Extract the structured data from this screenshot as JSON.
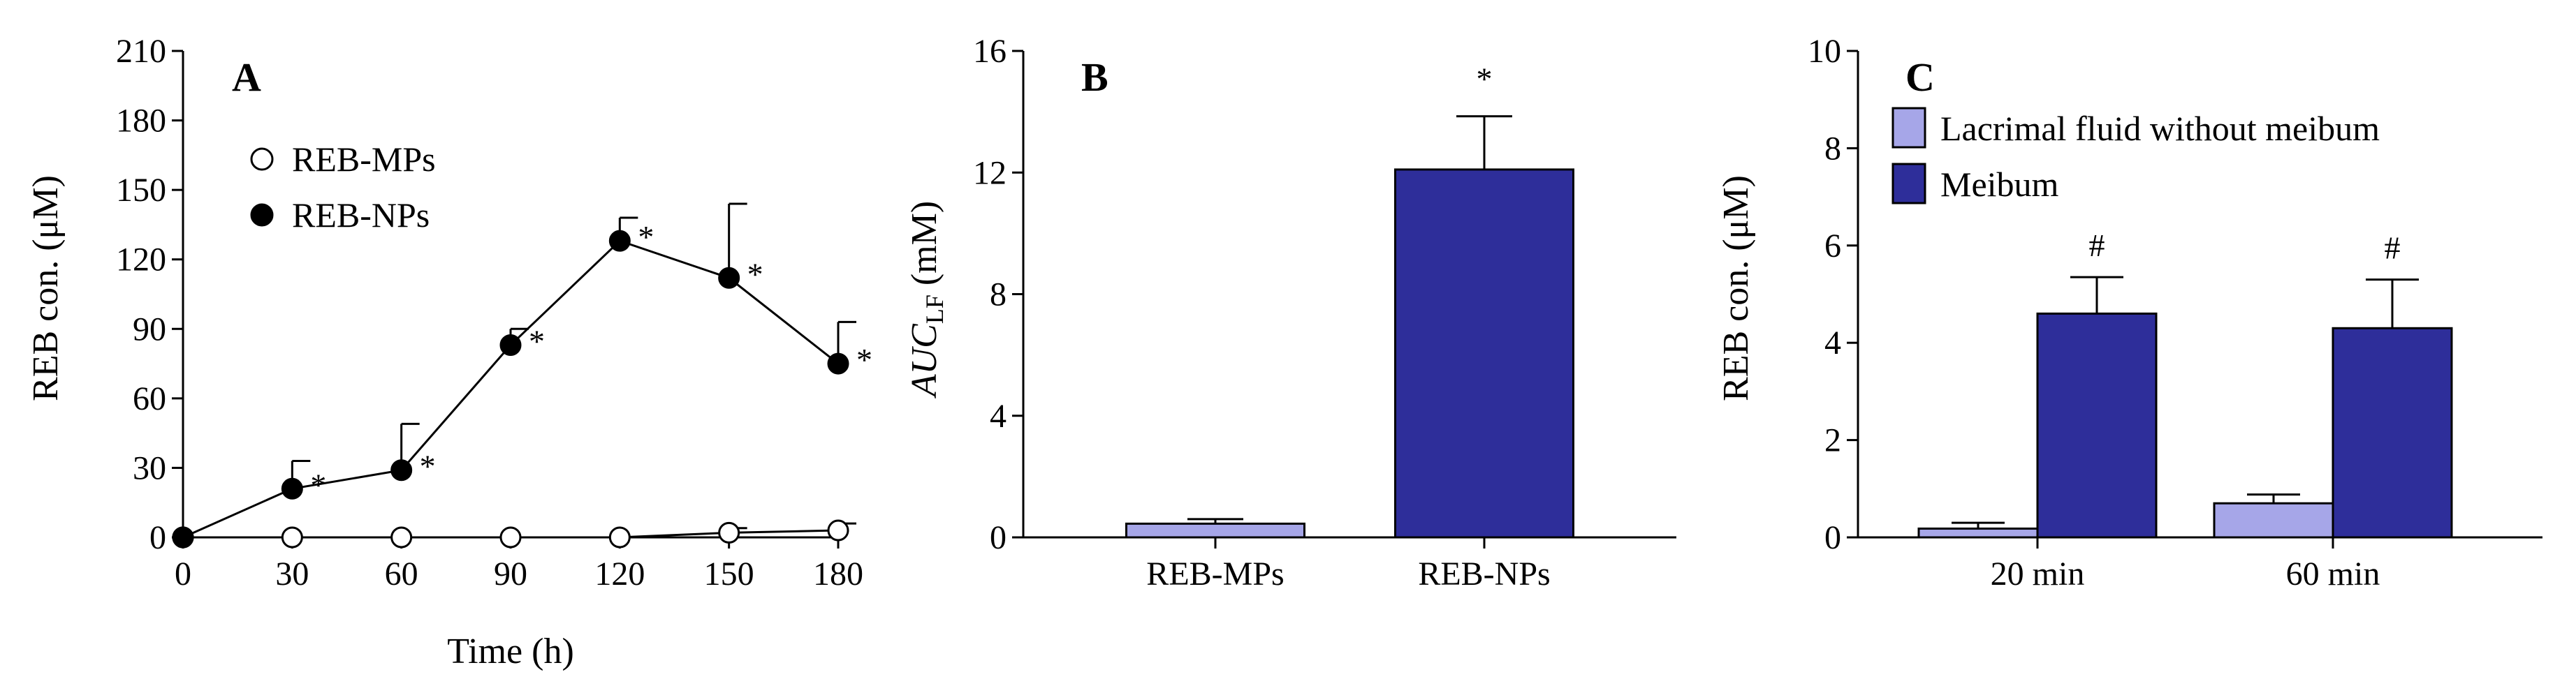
{
  "colors": {
    "light_bar": "#a6a6e8",
    "dark_bar": "#2e2e9a",
    "axis": "#000000",
    "open_marker_fill": "#ffffff",
    "filled_marker": "#000000"
  },
  "chart_data": [
    {
      "type": "line",
      "panel_letter": "A",
      "xlabel": "Time (h)",
      "ylabel": "REB con. (μM)",
      "xlim": [
        0,
        180
      ],
      "ylim": [
        0,
        210
      ],
      "xticks": [
        "0",
        "30",
        "60",
        "90",
        "120",
        "150",
        "180"
      ],
      "yticks": [
        "0",
        "30",
        "60",
        "90",
        "120",
        "150",
        "180",
        "210"
      ],
      "legend_position": "upper-left",
      "series": [
        {
          "name": "REB-MPs",
          "marker": "open-circle",
          "x": [
            0,
            30,
            60,
            90,
            120,
            150,
            180
          ],
          "y": [
            0,
            0,
            0,
            0,
            0,
            2,
            3
          ],
          "error": [
            0,
            0,
            0,
            0,
            0,
            2,
            3
          ],
          "significance": [
            "",
            "",
            "",
            "",
            "",
            "",
            ""
          ]
        },
        {
          "name": "REB-NPs",
          "marker": "filled-circle",
          "x": [
            0,
            30,
            60,
            90,
            120,
            150,
            180
          ],
          "y": [
            0,
            21,
            29,
            83,
            128,
            112,
            75
          ],
          "error": [
            0,
            12,
            20,
            7,
            10,
            32,
            18
          ],
          "significance": [
            "",
            "*",
            "*",
            "*",
            "*",
            "*",
            "*"
          ]
        }
      ]
    },
    {
      "type": "bar",
      "panel_letter": "B",
      "ylabel_main": "AUC",
      "ylabel_sub": "LF",
      "ylabel_unit": " (mM)",
      "ylim": [
        0,
        16
      ],
      "yticks": [
        "0",
        "4",
        "8",
        "12",
        "16"
      ],
      "categories": [
        "REB-MPs",
        "REB-NPs"
      ],
      "values": [
        0.45,
        12.1
      ],
      "error": [
        0.15,
        1.75
      ],
      "significance": [
        "",
        "*"
      ],
      "bar_colors": [
        "#a6a6e8",
        "#2e2e9a"
      ]
    },
    {
      "type": "bar",
      "panel_letter": "C",
      "ylabel": "REB con. (μM)",
      "ylim": [
        0,
        10
      ],
      "yticks": [
        "0",
        "2",
        "4",
        "6",
        "8",
        "10"
      ],
      "categories": [
        "20 min",
        "60 min"
      ],
      "legend_position": "upper-left",
      "series": [
        {
          "name": "Lacrimal fluid without meibum",
          "color": "#a6a6e8",
          "values": [
            0.18,
            0.7
          ],
          "error": [
            0.12,
            0.18
          ],
          "significance": [
            "",
            ""
          ]
        },
        {
          "name": "Meibum",
          "color": "#2e2e9a",
          "values": [
            4.6,
            4.3
          ],
          "error": [
            0.75,
            1.0
          ],
          "significance": [
            "#",
            "#"
          ]
        }
      ]
    }
  ]
}
